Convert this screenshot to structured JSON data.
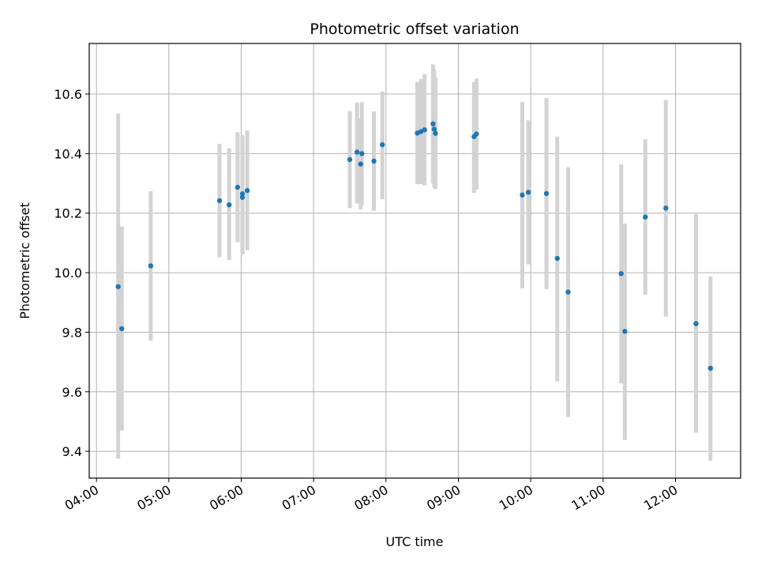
{
  "chart_data": {
    "type": "scatter",
    "title": "Photometric offset variation",
    "xlabel": "UTC time",
    "ylabel": "Photometric offset",
    "x_axis_kind": "time",
    "xlim": [
      "03:54",
      "12:54"
    ],
    "ylim": [
      9.31,
      10.77
    ],
    "x_ticks": [
      "04:00",
      "05:00",
      "06:00",
      "07:00",
      "08:00",
      "09:00",
      "10:00",
      "11:00",
      "12:00"
    ],
    "y_ticks": [
      9.4,
      9.6,
      9.8,
      10.0,
      10.2,
      10.4,
      10.6
    ],
    "grid": true,
    "legend": "none",
    "point_color": "#1f77b4",
    "errorbar_color": "#d3d3d3",
    "points": [
      {
        "x": "04:18",
        "y": 9.953,
        "low": 9.375,
        "high": 10.535
      },
      {
        "x": "04:21",
        "y": 9.812,
        "low": 9.47,
        "high": 10.155
      },
      {
        "x": "04:45",
        "y": 10.023,
        "low": 9.772,
        "high": 10.274
      },
      {
        "x": "05:42",
        "y": 10.242,
        "low": 10.052,
        "high": 10.433
      },
      {
        "x": "05:50",
        "y": 10.228,
        "low": 10.043,
        "high": 10.418
      },
      {
        "x": "05:57",
        "y": 10.287,
        "low": 10.102,
        "high": 10.472
      },
      {
        "x": "06:01",
        "y": 10.253,
        "low": 10.062,
        "high": 10.452
      },
      {
        "x": "06:01",
        "y": 10.265,
        "low": 10.062,
        "high": 10.462
      },
      {
        "x": "06:05",
        "y": 10.276,
        "low": 10.076,
        "high": 10.478
      },
      {
        "x": "07:30",
        "y": 10.38,
        "low": 10.217,
        "high": 10.543
      },
      {
        "x": "07:36",
        "y": 10.405,
        "low": 10.232,
        "high": 10.572
      },
      {
        "x": "07:39",
        "y": 10.365,
        "low": 10.212,
        "high": 10.518
      },
      {
        "x": "07:40",
        "y": 10.4,
        "low": 10.227,
        "high": 10.573
      },
      {
        "x": "07:50",
        "y": 10.375,
        "low": 10.208,
        "high": 10.542
      },
      {
        "x": "07:57",
        "y": 10.43,
        "low": 10.247,
        "high": 10.609
      },
      {
        "x": "08:26",
        "y": 10.469,
        "low": 10.297,
        "high": 10.641
      },
      {
        "x": "08:29",
        "y": 10.474,
        "low": 10.297,
        "high": 10.651
      },
      {
        "x": "08:32",
        "y": 10.48,
        "low": 10.293,
        "high": 10.667
      },
      {
        "x": "08:39",
        "y": 10.5,
        "low": 10.3,
        "high": 10.7
      },
      {
        "x": "08:40",
        "y": 10.482,
        "low": 10.285,
        "high": 10.681
      },
      {
        "x": "08:41",
        "y": 10.468,
        "low": 10.281,
        "high": 10.655
      },
      {
        "x": "09:13",
        "y": 10.457,
        "low": 10.268,
        "high": 10.64
      },
      {
        "x": "09:15",
        "y": 10.466,
        "low": 10.279,
        "high": 10.652
      },
      {
        "x": "09:53",
        "y": 10.261,
        "low": 9.948,
        "high": 10.574
      },
      {
        "x": "09:58",
        "y": 10.27,
        "low": 10.028,
        "high": 10.512
      },
      {
        "x": "10:13",
        "y": 10.266,
        "low": 9.945,
        "high": 10.587
      },
      {
        "x": "10:22",
        "y": 10.048,
        "low": 9.635,
        "high": 10.457
      },
      {
        "x": "10:31",
        "y": 9.935,
        "low": 9.515,
        "high": 10.355
      },
      {
        "x": "11:15",
        "y": 9.997,
        "low": 9.628,
        "high": 10.364
      },
      {
        "x": "11:18",
        "y": 9.803,
        "low": 9.438,
        "high": 10.165
      },
      {
        "x": "11:35",
        "y": 10.187,
        "low": 9.926,
        "high": 10.448
      },
      {
        "x": "11:52",
        "y": 10.217,
        "low": 9.853,
        "high": 10.58
      },
      {
        "x": "12:17",
        "y": 9.829,
        "low": 9.462,
        "high": 10.197
      },
      {
        "x": "12:29",
        "y": 9.679,
        "low": 9.368,
        "high": 9.988
      }
    ]
  }
}
